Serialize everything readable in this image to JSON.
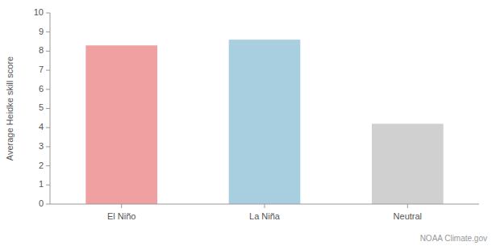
{
  "chart_data": {
    "type": "bar",
    "categories": [
      "El Niño",
      "La Niña",
      "Neutral"
    ],
    "values": [
      8.3,
      8.6,
      4.2
    ],
    "colors": [
      "#f0a0a0",
      "#a8cfe0",
      "#d0d0d0"
    ],
    "ylabel": "Average Heidke skill score",
    "ylim": [
      0,
      10
    ],
    "yticks": [
      0,
      1,
      2,
      3,
      4,
      5,
      6,
      7,
      8,
      9,
      10
    ],
    "grid": false,
    "annotations": [
      "NOAA Climate.gov"
    ]
  }
}
